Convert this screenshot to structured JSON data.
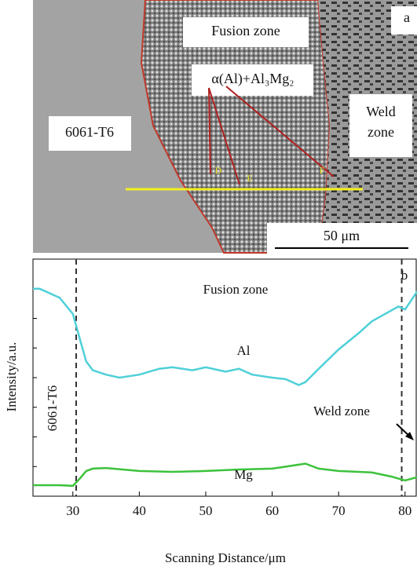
{
  "micrograph": {
    "panel": "a",
    "fusion_zone": "Fusion zone",
    "phase": "α(Al)+Al₃Mg₂",
    "base_metal": "6061-T6",
    "weld_zone_line1": "Weld",
    "weld_zone_line2": "zone",
    "points": [
      "D",
      "E",
      "F"
    ],
    "scale_bar": "50 μm"
  },
  "chart_data": {
    "type": "line",
    "panel": "b",
    "x_label": "Scanning Distance/μm",
    "y_label": "Intensity/a.u.",
    "xlim": [
      24,
      81.8
    ],
    "xticks": [
      30,
      40,
      50,
      60,
      70,
      80
    ],
    "ylim": [
      0,
      8
    ],
    "yticks": [
      1,
      2,
      3,
      4,
      5,
      6,
      7
    ],
    "series": [
      {
        "name": "Al",
        "color": "#4fd0d8",
        "x": [
          24,
          25,
          28,
          30,
          31,
          32,
          33,
          35,
          37,
          40,
          43,
          45,
          48,
          50,
          53,
          55,
          57,
          60,
          62,
          64,
          65,
          67,
          70,
          73,
          75,
          77,
          79,
          80,
          81.8
        ],
        "values": [
          7.0,
          7.0,
          6.7,
          6.15,
          5.35,
          4.55,
          4.25,
          4.1,
          4.0,
          4.1,
          4.3,
          4.35,
          4.25,
          4.35,
          4.2,
          4.3,
          4.1,
          4.0,
          3.95,
          3.75,
          3.85,
          4.3,
          4.95,
          5.5,
          5.9,
          6.15,
          6.4,
          6.3,
          6.9
        ]
      },
      {
        "name": "Mg",
        "color": "#3cc23c",
        "x": [
          24,
          25,
          28,
          30,
          31,
          32,
          33,
          35,
          40,
          45,
          50,
          55,
          60,
          63,
          65,
          67,
          70,
          75,
          78,
          80,
          81.8
        ],
        "values": [
          0.37,
          0.37,
          0.37,
          0.35,
          0.58,
          0.85,
          0.93,
          0.95,
          0.85,
          0.82,
          0.85,
          0.9,
          0.93,
          1.03,
          1.1,
          0.93,
          0.85,
          0.8,
          0.66,
          0.53,
          0.64
        ]
      }
    ],
    "reference_lines": [
      30.5,
      79.5
    ],
    "annotations": [
      "Fusion zone",
      "6061-T6",
      "Weld zone"
    ]
  }
}
